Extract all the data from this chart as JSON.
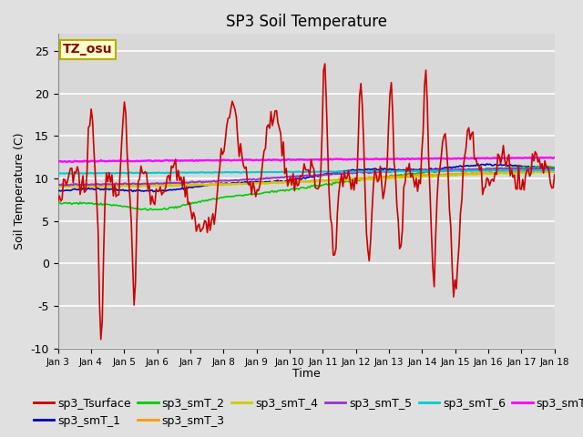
{
  "title": "SP3 Soil Temperature",
  "ylabel": "Soil Temperature (C)",
  "xlabel": "Time",
  "annotation": "TZ_osu",
  "ylim": [
    -10,
    27
  ],
  "xlim": [
    0,
    15
  ],
  "xtick_labels": [
    "Jan 3",
    "Jan 4",
    "Jan 5",
    "Jan 6",
    "Jan 7",
    "Jan 8",
    "Jan 9",
    "Jan 10",
    "Jan 11",
    "Jan 12",
    "Jan 13",
    "Jan 14",
    "Jan 15",
    "Jan 16",
    "Jan 17",
    "Jan 18"
  ],
  "yticks": [
    -10,
    -5,
    0,
    5,
    10,
    15,
    20,
    25
  ],
  "series_colors": {
    "sp3_Tsurface": "#cc0000",
    "sp3_smT_1": "#0000bb",
    "sp3_smT_2": "#00cc00",
    "sp3_smT_3": "#ff9900",
    "sp3_smT_4": "#cccc00",
    "sp3_smT_5": "#9933cc",
    "sp3_smT_6": "#00cccc",
    "sp3_smT_7": "#ff00ff"
  },
  "background_color": "#e0e0e0",
  "plot_bg_color": "#d8d8d8",
  "grid_color": "#ffffff",
  "title_fontsize": 12,
  "axis_fontsize": 9,
  "legend_fontsize": 9,
  "figsize": [
    6.4,
    4.8
  ],
  "dpi": 100
}
